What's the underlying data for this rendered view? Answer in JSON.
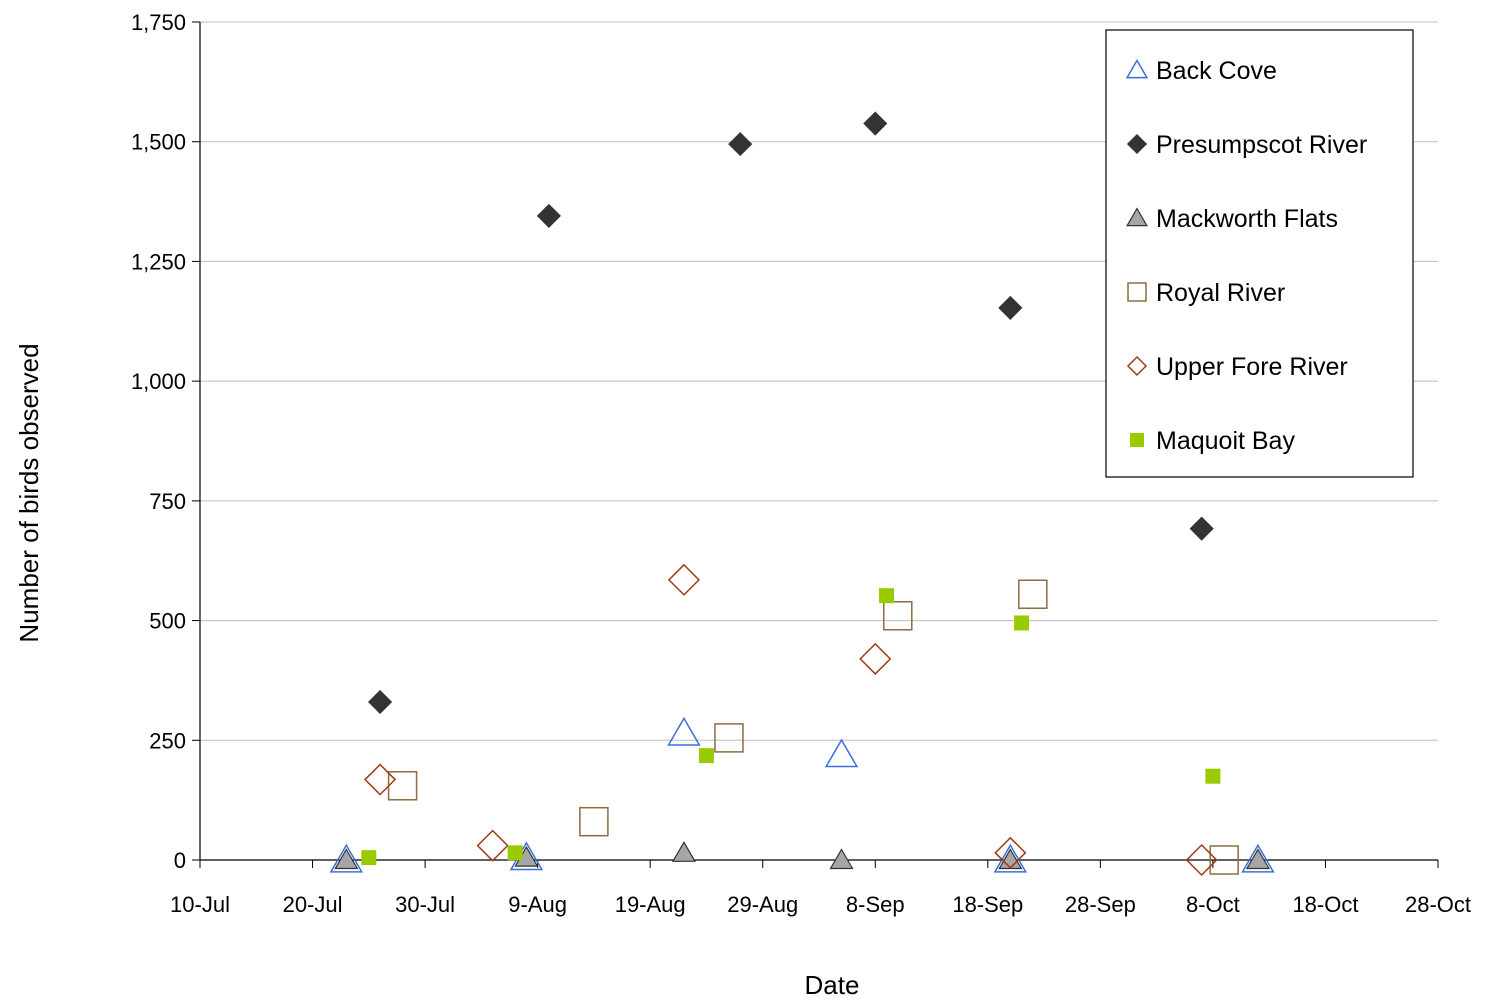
{
  "chart_data": {
    "type": "scatter",
    "title": "",
    "xlabel": "Date",
    "ylabel": "Number of  birds observed",
    "x_ticks": [
      "10-Jul",
      "20-Jul",
      "30-Jul",
      "9-Aug",
      "19-Aug",
      "29-Aug",
      "8-Sep",
      "18-Sep",
      "28-Sep",
      "8-Oct",
      "18-Oct",
      "28-Oct"
    ],
    "xlim": [
      "10-Jul",
      "28-Oct"
    ],
    "y_ticks": [
      "0",
      "250",
      "500",
      "750",
      "1,000",
      "1,250",
      "1,500",
      "1,750"
    ],
    "ylim": [
      0,
      1750
    ],
    "grid": "horizontal",
    "legend_position": "top-right",
    "series": [
      {
        "name": "Back Cove",
        "marker": "triangle-open",
        "color": "#3a6fd8",
        "points": [
          [
            "23-Jul",
            0
          ],
          [
            "8-Aug",
            5
          ],
          [
            "22-Aug",
            265
          ],
          [
            "5-Sep",
            220
          ],
          [
            "20-Sep",
            0
          ],
          [
            "12-Oct",
            0
          ]
        ]
      },
      {
        "name": "Presumpscot River",
        "marker": "diamond-filled",
        "color": "#333333",
        "points": [
          [
            "26-Jul",
            330
          ],
          [
            "10-Aug",
            1345
          ],
          [
            "27-Aug",
            1495
          ],
          [
            "8-Sep",
            1538
          ],
          [
            "20-Sep",
            1153
          ],
          [
            "7-Oct",
            692
          ]
        ]
      },
      {
        "name": "Mackworth Flats",
        "marker": "triangle-filled",
        "color": "#a6a6a6",
        "points": [
          [
            "23-Jul",
            0
          ],
          [
            "8-Aug",
            5
          ],
          [
            "22-Aug",
            15
          ],
          [
            "5-Sep",
            0
          ],
          [
            "20-Sep",
            0
          ],
          [
            "12-Oct",
            0
          ]
        ]
      },
      {
        "name": "Royal River",
        "marker": "square-open",
        "color": "#8c6d3f",
        "points": [
          [
            "28-Jul",
            155
          ],
          [
            "14-Aug",
            80
          ],
          [
            "26-Aug",
            255
          ],
          [
            "10-Sep",
            510
          ],
          [
            "22-Sep",
            555
          ],
          [
            "9-Oct",
            0
          ]
        ]
      },
      {
        "name": "Upper Fore River",
        "marker": "diamond-open",
        "color": "#a0381a",
        "points": [
          [
            "26-Jul",
            168
          ],
          [
            "5-Aug",
            30
          ],
          [
            "22-Aug",
            585
          ],
          [
            "8-Sep",
            420
          ],
          [
            "20-Sep",
            15
          ],
          [
            "7-Oct",
            0
          ]
        ]
      },
      {
        "name": "Maquoit Bay",
        "marker": "square-filled",
        "color": "#99cc00",
        "points": [
          [
            "25-Jul",
            5
          ],
          [
            "7-Aug",
            15
          ],
          [
            "24-Aug",
            218
          ],
          [
            "9-Sep",
            552
          ],
          [
            "21-Sep",
            495
          ],
          [
            "8-Oct",
            175
          ]
        ]
      }
    ]
  }
}
